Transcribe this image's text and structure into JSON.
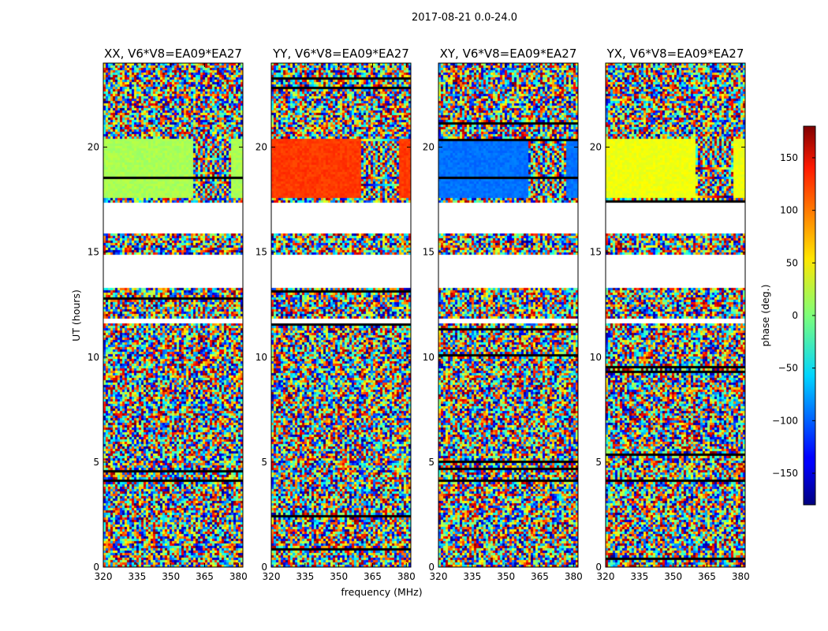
{
  "chart_data": {
    "type": "heatmap",
    "suptitle": "2017-08-21 0.0-24.0",
    "xlabel": "frequency (MHz)",
    "ylabel": "UT (hours)",
    "xlim": [
      320,
      382
    ],
    "ylim": [
      0,
      24
    ],
    "xticks": [
      320,
      335,
      350,
      365,
      380
    ],
    "yticks": [
      0,
      5,
      10,
      15,
      20
    ],
    "colorbar": {
      "label": "phase (deg.)",
      "range": [
        -180,
        180
      ],
      "ticks": [
        150,
        100,
        50,
        0,
        -50,
        -100,
        -150
      ],
      "colormap": "jet"
    },
    "panels": [
      {
        "title": "XX, V6*V8=EA09*EA27",
        "coherent_phase_deg": 15
      },
      {
        "title": "YY, V6*V8=EA09*EA27",
        "coherent_phase_deg": 115
      },
      {
        "title": "XY, V6*V8=EA09*EA27",
        "coherent_phase_deg": -95
      },
      {
        "title": "YX, V6*V8=EA09*EA27",
        "coherent_phase_deg": 40
      }
    ],
    "coherent_segment_ut": [
      17.6,
      20.5
    ],
    "grid": false
  }
}
